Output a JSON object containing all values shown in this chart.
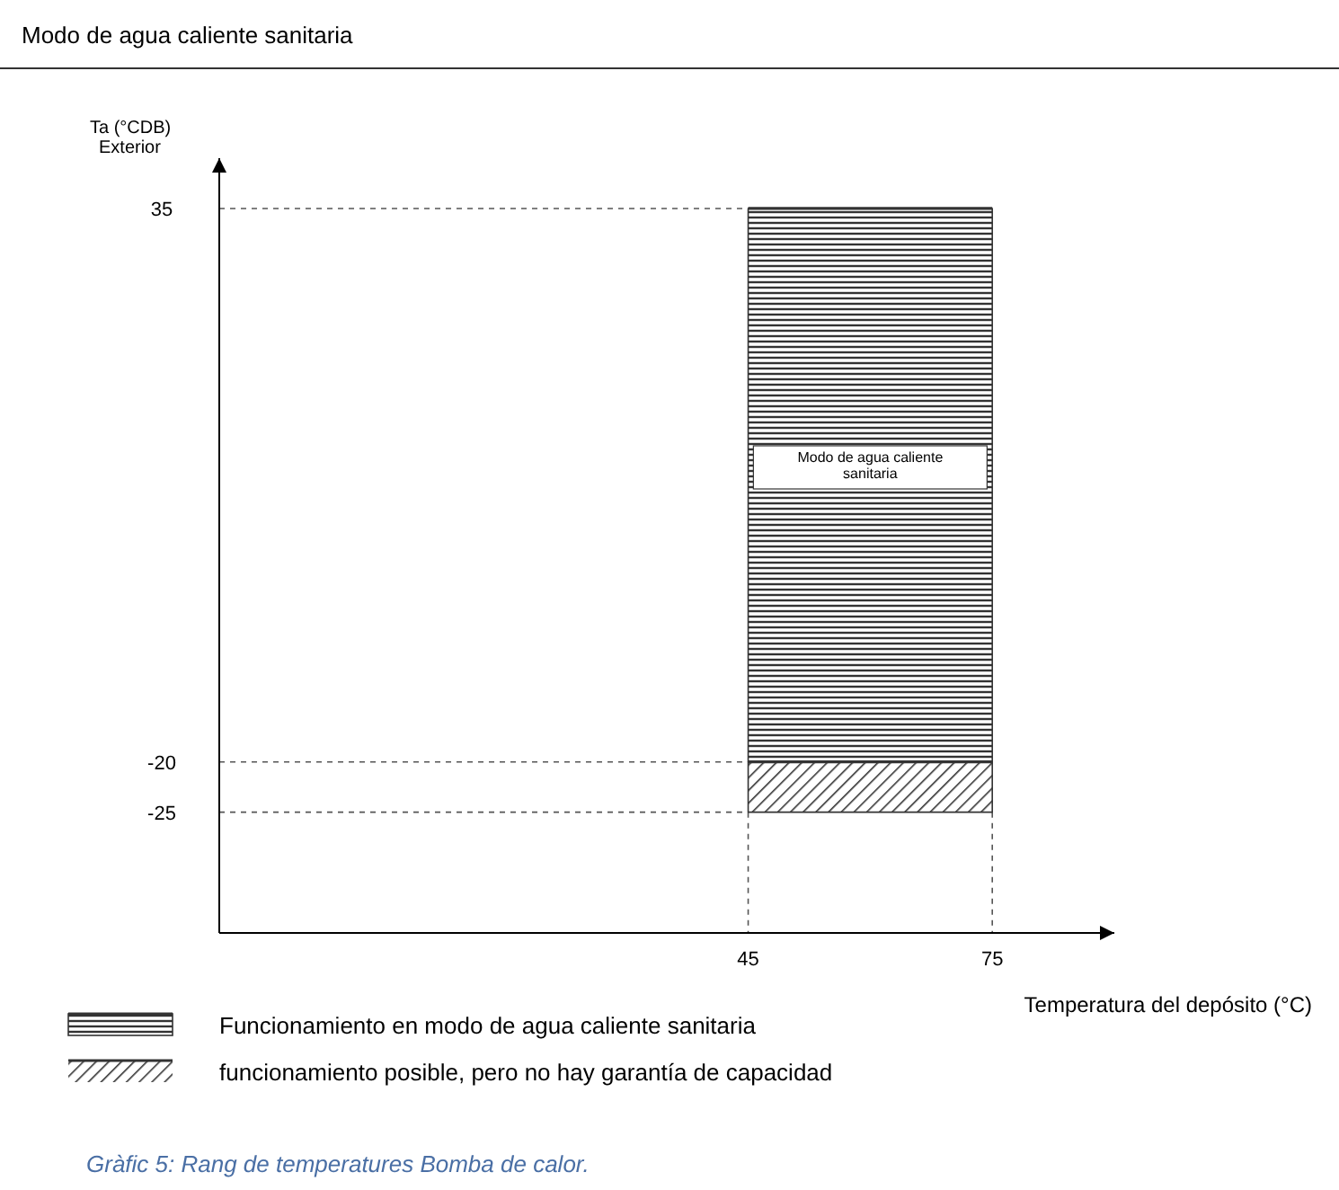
{
  "chart_data": {
    "type": "line",
    "title": "Modo de agua caliente sanitaria",
    "xlabel": "Temperatura del depósito  (°C)",
    "ylabel": "Ta (°CDB)\nExterior",
    "series": [
      {
        "name": "funcionamiento posible, pero no hay garantía de capacidad",
        "color": "#333333",
        "values": [
          -20,
          -20
        ],
        "lower": [
          -25,
          -25
        ],
        "upper": [
          -20,
          -20
        ]
      },
      {
        "name": "Funcionamiento en modo de agua caliente sanitaria",
        "color": "#333333",
        "values": [
          35,
          35
        ],
        "lower": [
          -20,
          -20
        ],
        "upper": [
          35,
          35
        ]
      }
    ],
    "x": [
      45,
      75
    ],
    "ref_lines": [
      {
        "axis": "y",
        "value": 35,
        "line_style": "dashed"
      },
      {
        "axis": "y",
        "value": -20,
        "line_style": "dashed"
      },
      {
        "axis": "y",
        "value": -25,
        "line_style": "dashed"
      },
      {
        "axis": "x",
        "value": 45,
        "line_style": "dashed"
      },
      {
        "axis": "x",
        "value": 75,
        "line_style": "dashed"
      }
    ],
    "xlim": [
      -20,
      90
    ],
    "xticks": [
      45,
      75
    ],
    "ylim": [
      -37,
      40
    ],
    "yticks": [
      -25,
      -20,
      35
    ],
    "legend": "bottom",
    "annotations": [
      "Modo de agua caliente sanitaria",
      "Gràfic 5: Rang de temperatures Bomba de calor."
    ]
  }
}
